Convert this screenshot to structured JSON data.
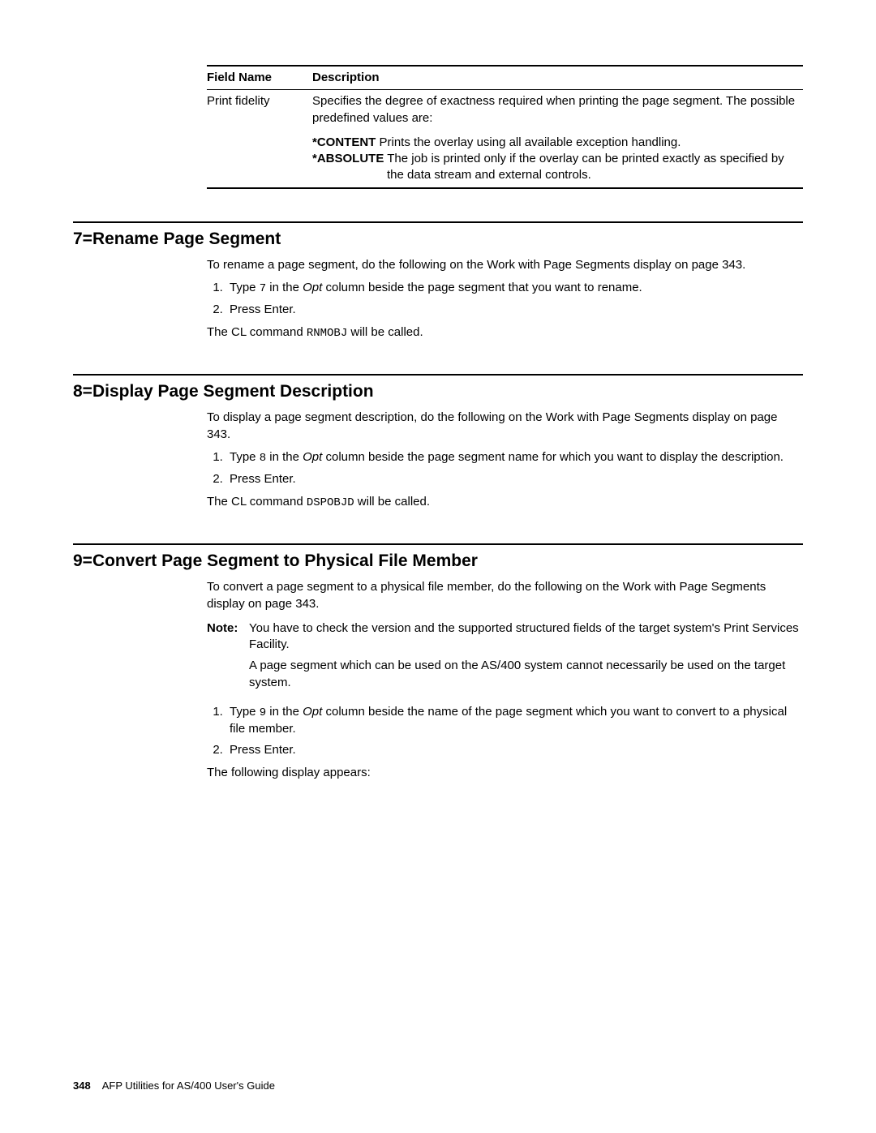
{
  "table": {
    "header": {
      "c1": "Field Name",
      "c2": "Description"
    },
    "row1": {
      "c1": "Print fidelity",
      "c2": "Specifies the degree of exactness required when printing the page segment.  The possible predefined values are:"
    },
    "values": {
      "content_kw": "*CONTENT",
      "content_txt": " Prints the overlay using all available exception handling.",
      "absolute_kw": "*ABSOLUTE",
      "absolute_txt": " The job is printed only if the overlay can be printed exactly as specified by the data stream and external controls."
    }
  },
  "sec7": {
    "title": "7=Rename Page Segment",
    "intro": "To rename a page segment, do the following on the Work with Page Segments display on page 343.",
    "step1a": "Type ",
    "step1code": "7",
    "step1b": " in the ",
    "step1ital": "Opt",
    "step1c": " column beside the page segment that you want to rename.",
    "step2": "Press Enter.",
    "tail_a": "The CL command ",
    "tail_code": "RNMOBJ",
    "tail_b": " will be called."
  },
  "sec8": {
    "title": "8=Display Page Segment Description",
    "intro": "To display a page segment description, do the following on the Work with Page Segments display on page 343.",
    "step1a": "Type ",
    "step1code": "8",
    "step1b": " in the ",
    "step1ital": "Opt",
    "step1c": " column beside the page segment name for which you want to display the description.",
    "step2": "Press Enter.",
    "tail_a": "The CL command ",
    "tail_code": "DSPOBJD",
    "tail_b": " will be called."
  },
  "sec9": {
    "title": "9=Convert Page Segment to Physical File Member",
    "intro": "To convert a page segment to a physical file member, do the following on the Work with Page Segments display on page 343.",
    "note_label": "Note:",
    "note_p1": "You have to check the version and the supported structured fields of the target system's Print Services Facility.",
    "note_p2": "A page segment which can be used on the AS/400 system cannot necessarily be used on the target system.",
    "step1a": "Type ",
    "step1code": "9",
    "step1b": " in the ",
    "step1ital": "Opt",
    "step1c": " column beside the name of the page segment which you want to convert to a physical file member.",
    "step2": "Press Enter.",
    "tail": "The following display appears:"
  },
  "footer": {
    "page": "348",
    "book": "AFP Utilities for AS/400 User's Guide"
  }
}
